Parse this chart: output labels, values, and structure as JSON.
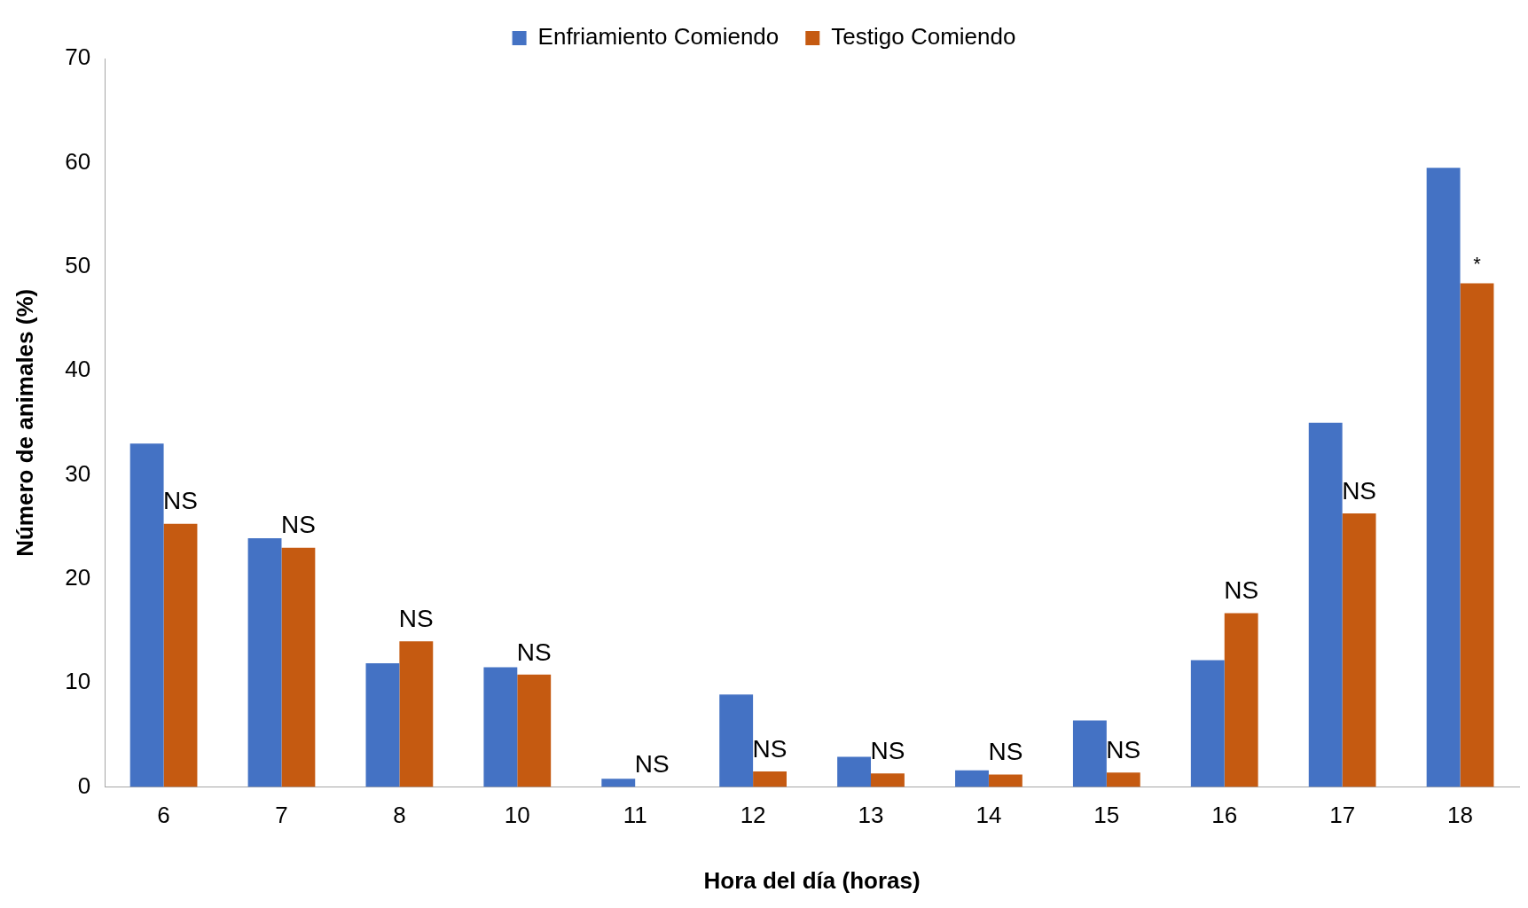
{
  "chart_data": {
    "type": "bar",
    "xlabel": "Hora del día (horas)",
    "ylabel": "Número de animales (%)",
    "categories": [
      "6",
      "7",
      "8",
      "10",
      "11",
      "12",
      "13",
      "14",
      "15",
      "16",
      "17",
      "18"
    ],
    "series": [
      {
        "name": "Enfriamiento Comiendo",
        "color": "#4472c4",
        "values": [
          33.0,
          23.9,
          11.9,
          11.5,
          0.8,
          8.9,
          2.9,
          1.6,
          6.4,
          12.2,
          35.0,
          59.5
        ]
      },
      {
        "name": "Testigo Comiendo",
        "color": "#c55a11",
        "values": [
          25.3,
          23.0,
          14.0,
          10.8,
          0,
          1.5,
          1.3,
          1.2,
          1.4,
          16.7,
          26.3,
          48.4
        ]
      }
    ],
    "ylim": [
      0,
      70
    ],
    "yticks": [
      0,
      10,
      20,
      30,
      40,
      50,
      60,
      70
    ],
    "grid": false,
    "legend": "top",
    "annotations": [
      {
        "text": "NS",
        "x": "6",
        "y": 25.3
      },
      {
        "text": "NS",
        "x": "7",
        "y": 23.0
      },
      {
        "text": "NS",
        "x": "8",
        "y": 14.0
      },
      {
        "text": "NS",
        "x": "10",
        "y": 10.8
      },
      {
        "text": "NS",
        "x": "11",
        "y": 0
      },
      {
        "text": "NS",
        "x": "12",
        "y": 1.5
      },
      {
        "text": "NS",
        "x": "13",
        "y": 1.3
      },
      {
        "text": "NS",
        "x": "14",
        "y": 1.2
      },
      {
        "text": "NS",
        "x": "15",
        "y": 1.4
      },
      {
        "text": "NS",
        "x": "16",
        "y": 16.7
      },
      {
        "text": "NS",
        "x": "17",
        "y": 26.3
      },
      {
        "text": "*",
        "x": "18",
        "y": 48.4
      }
    ]
  }
}
